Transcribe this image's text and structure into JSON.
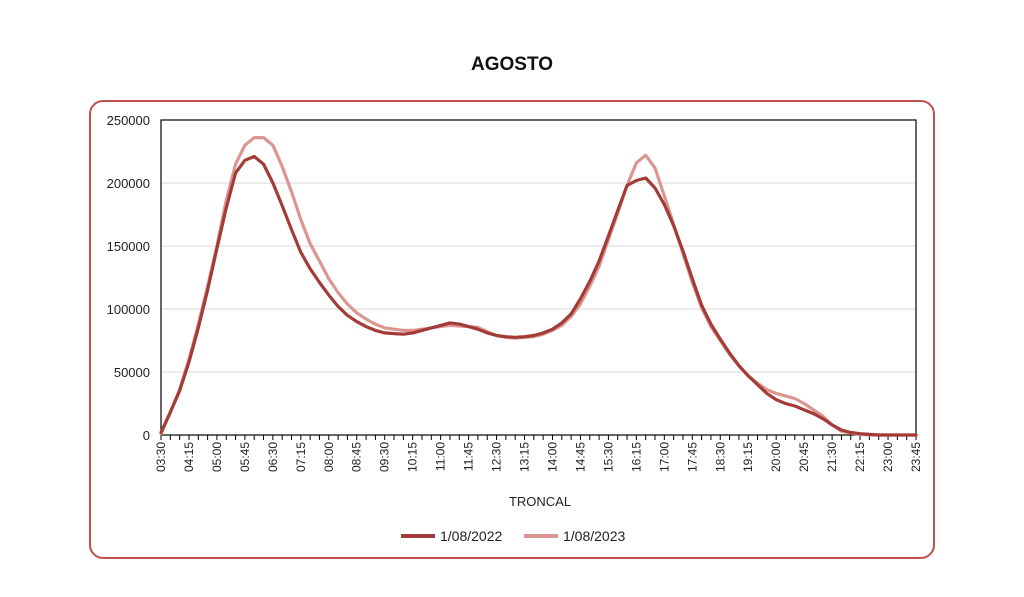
{
  "chart_data": {
    "type": "line",
    "title": "AGOSTO",
    "xlabel": "TRONCAL",
    "ylabel": "",
    "ylim": [
      0,
      250000
    ],
    "yticks": [
      0,
      50000,
      100000,
      150000,
      200000,
      250000
    ],
    "ytick_labels": [
      "0",
      "50000",
      "100000",
      "150000",
      "200000",
      "250000"
    ],
    "x": [
      "03:30",
      "03:45",
      "04:00",
      "04:15",
      "04:30",
      "04:45",
      "05:00",
      "05:15",
      "05:30",
      "05:45",
      "06:00",
      "06:15",
      "06:30",
      "06:45",
      "07:00",
      "07:15",
      "07:30",
      "07:45",
      "08:00",
      "08:15",
      "08:30",
      "08:45",
      "09:00",
      "09:15",
      "09:30",
      "09:45",
      "10:00",
      "10:15",
      "10:30",
      "10:45",
      "11:00",
      "11:15",
      "11:30",
      "11:45",
      "12:00",
      "12:15",
      "12:30",
      "12:45",
      "13:00",
      "13:15",
      "13:30",
      "13:45",
      "14:00",
      "14:15",
      "14:30",
      "14:45",
      "15:00",
      "15:15",
      "15:30",
      "15:45",
      "16:00",
      "16:15",
      "16:30",
      "16:45",
      "17:00",
      "17:15",
      "17:30",
      "17:45",
      "18:00",
      "18:15",
      "18:30",
      "18:45",
      "19:00",
      "19:15",
      "19:30",
      "19:45",
      "20:00",
      "20:15",
      "20:30",
      "20:45",
      "21:00",
      "21:15",
      "21:30",
      "21:45",
      "22:00",
      "22:15",
      "22:30",
      "22:45",
      "23:00",
      "23:15",
      "23:30",
      "23:45"
    ],
    "x_tick_labels": [
      "03:30",
      "04:15",
      "05:00",
      "05:45",
      "06:30",
      "07:15",
      "08:00",
      "08:45",
      "09:30",
      "10:15",
      "11:00",
      "11:45",
      "12:30",
      "13:15",
      "14:00",
      "14:45",
      "15:30",
      "16:15",
      "17:00",
      "17:45",
      "18:30",
      "19:15",
      "20:00",
      "20:45",
      "21:30",
      "22:15",
      "23:00",
      "23:45"
    ],
    "grid": true,
    "legend_position": "bottom",
    "series": [
      {
        "name": "1/08/2022",
        "color": "#a33b38",
        "values": [
          2000,
          18000,
          35000,
          58000,
          85000,
          115000,
          148000,
          180000,
          208000,
          218000,
          221000,
          215000,
          200000,
          182000,
          163000,
          145000,
          132000,
          121000,
          111000,
          102000,
          95000,
          90000,
          86000,
          83000,
          81000,
          80500,
          80000,
          81000,
          83000,
          85000,
          87000,
          89000,
          88000,
          86000,
          84000,
          81000,
          79000,
          78000,
          77500,
          78000,
          79000,
          81000,
          84000,
          89000,
          96000,
          108000,
          122000,
          138000,
          158000,
          178000,
          198000,
          202000,
          204000,
          196000,
          183000,
          166000,
          146000,
          124000,
          103000,
          88000,
          76000,
          65000,
          55000,
          47000,
          40000,
          33000,
          28000,
          25000,
          23000,
          20000,
          17000,
          13000,
          8000,
          4000,
          2000,
          1000,
          500,
          0,
          0,
          0,
          0,
          0
        ]
      },
      {
        "name": "1/08/2023",
        "color": "#dc9691",
        "values": [
          1000,
          18000,
          36000,
          60000,
          88000,
          118000,
          150000,
          186000,
          215000,
          230000,
          236000,
          236000,
          230000,
          213000,
          193000,
          171000,
          152000,
          138000,
          124000,
          113000,
          104000,
          97000,
          92000,
          88000,
          85000,
          84000,
          83000,
          83000,
          84000,
          85000,
          86000,
          87000,
          86500,
          86000,
          85500,
          82000,
          79000,
          77500,
          77000,
          77500,
          78000,
          80000,
          83000,
          87000,
          94000,
          104000,
          118000,
          134000,
          155000,
          176000,
          198000,
          216000,
          222000,
          212000,
          190000,
          167000,
          144000,
          121000,
          101000,
          86000,
          75000,
          64000,
          55000,
          47000,
          41000,
          36000,
          33000,
          31000,
          29000,
          25000,
          20000,
          15000,
          8000,
          3000,
          1500,
          500,
          0,
          0,
          0,
          0,
          0,
          0
        ]
      }
    ]
  }
}
